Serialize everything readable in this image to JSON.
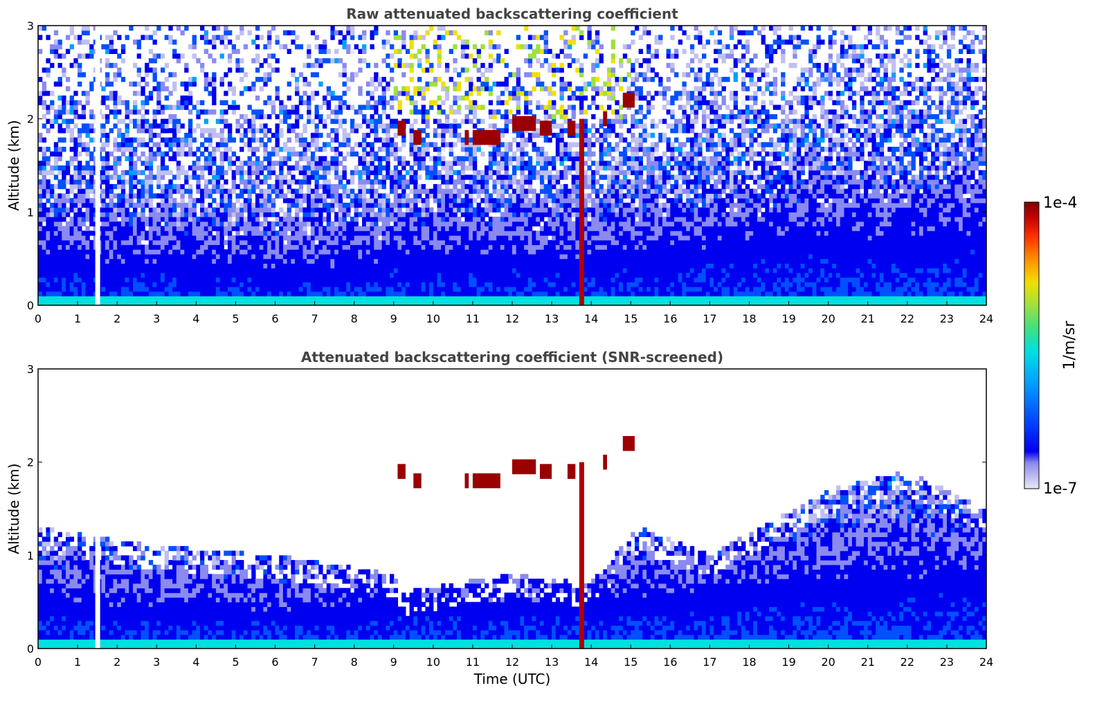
{
  "chart_data": [
    {
      "type": "heatmap",
      "title": "Raw attenuated backscattering coefficient",
      "xlabel": "",
      "ylabel": "Altitude (km)",
      "xlim": [
        0,
        24
      ],
      "ylim": [
        0,
        3
      ],
      "x_ticks": [
        "0",
        "1",
        "2",
        "3",
        "4",
        "5",
        "6",
        "7",
        "8",
        "9",
        "10",
        "11",
        "12",
        "13",
        "14",
        "15",
        "16",
        "17",
        "18",
        "19",
        "20",
        "21",
        "22",
        "23",
        "24"
      ],
      "y_ticks": [
        "0",
        "1",
        "2",
        "3"
      ],
      "screened": false,
      "features": {
        "boundary_layer_top_km": [
          [
            0,
            0.7
          ],
          [
            4,
            0.6
          ],
          [
            7,
            0.55
          ],
          [
            9,
            0.7
          ],
          [
            14,
            0.7
          ],
          [
            20,
            1.0
          ],
          [
            24,
            1.1
          ]
        ],
        "cloud_layers": [
          {
            "t_start": 9.1,
            "t_end": 9.3,
            "z_km": 1.9
          },
          {
            "t_start": 9.5,
            "t_end": 9.7,
            "z_km": 1.8
          },
          {
            "t_start": 10.8,
            "t_end": 10.9,
            "z_km": 1.8
          },
          {
            "t_start": 11.0,
            "t_end": 11.7,
            "z_km": 1.8
          },
          {
            "t_start": 12.0,
            "t_end": 12.6,
            "z_km": 1.95
          },
          {
            "t_start": 12.7,
            "t_end": 13.0,
            "z_km": 1.9
          },
          {
            "t_start": 13.4,
            "t_end": 13.6,
            "z_km": 1.9
          },
          {
            "t_start": 14.3,
            "t_end": 14.4,
            "z_km": 2.0
          },
          {
            "t_start": 14.8,
            "t_end": 15.1,
            "z_km": 2.2
          }
        ],
        "rain_column_hour": 13.75,
        "data_gaps_hours": [
          1.5
        ]
      }
    },
    {
      "type": "heatmap",
      "title": "Attenuated backscattering coefficient (SNR-screened)",
      "xlabel": "Time (UTC)",
      "ylabel": "Altitude (km)",
      "xlim": [
        0,
        24
      ],
      "ylim": [
        0,
        3
      ],
      "x_ticks": [
        "0",
        "1",
        "2",
        "3",
        "4",
        "5",
        "6",
        "7",
        "8",
        "9",
        "10",
        "11",
        "12",
        "13",
        "14",
        "15",
        "16",
        "17",
        "18",
        "19",
        "20",
        "21",
        "22",
        "23",
        "24"
      ],
      "y_ticks": [
        "0",
        "1",
        "2",
        "3"
      ],
      "screened": true,
      "features": {
        "signal_top_km": [
          [
            0,
            1.3
          ],
          [
            3,
            1.1
          ],
          [
            6,
            1.0
          ],
          [
            9,
            0.8
          ],
          [
            9.2,
            0.6
          ],
          [
            12,
            0.8
          ],
          [
            14,
            0.7
          ],
          [
            15.2,
            1.3
          ],
          [
            17,
            1.0
          ],
          [
            20,
            1.7
          ],
          [
            22,
            1.9
          ],
          [
            24,
            1.5
          ]
        ]
      }
    }
  ],
  "colorbar": {
    "label": "1/m/sr",
    "max_label": "1e-4",
    "min_label": "1e-7",
    "scale": "log",
    "colormap": "jet",
    "colors": [
      "#e8e8f8",
      "#c0c0f0",
      "#8a8af0",
      "#0000f0",
      "#0050ff",
      "#00a0ff",
      "#00e0e0",
      "#40e080",
      "#a0e040",
      "#f0e000",
      "#ff9000",
      "#ff3000",
      "#c00000",
      "#800000"
    ]
  }
}
